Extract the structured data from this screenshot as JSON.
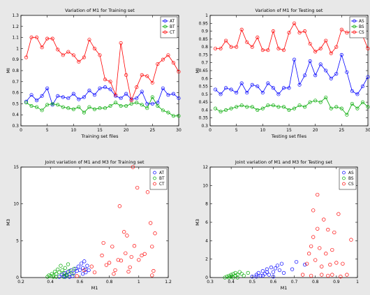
{
  "chart_data": [
    {
      "type": "line",
      "title": "Variation of M1 for Training set",
      "xlabel": "Training set files",
      "ylabel": "MI",
      "xlim": [
        0,
        30
      ],
      "ylim": [
        0.3,
        1.3
      ],
      "xticks": [
        0,
        5,
        10,
        15,
        20,
        25,
        30
      ],
      "yticks": [
        0.3,
        0.4,
        0.5,
        0.6,
        0.7,
        0.8,
        0.9,
        1.0,
        1.1,
        1.2,
        1.3
      ],
      "grid": false,
      "legend_position": "top-right",
      "x": [
        1,
        2,
        3,
        4,
        5,
        6,
        7,
        8,
        9,
        10,
        11,
        12,
        13,
        14,
        15,
        16,
        17,
        18,
        19,
        20,
        21,
        22,
        23,
        24,
        25,
        26,
        27,
        28,
        29,
        30
      ],
      "series": [
        {
          "name": "AT",
          "color": "#0000ff",
          "values": [
            0.52,
            0.58,
            0.53,
            0.57,
            0.64,
            0.49,
            0.57,
            0.56,
            0.55,
            0.59,
            0.54,
            0.56,
            0.62,
            0.58,
            0.64,
            0.65,
            0.63,
            0.57,
            0.55,
            0.59,
            0.54,
            0.55,
            0.61,
            0.5,
            0.5,
            0.51,
            0.64,
            0.58,
            0.59,
            0.55
          ]
        },
        {
          "name": "BT",
          "color": "#00aa00",
          "values": [
            0.51,
            0.48,
            0.47,
            0.44,
            0.49,
            0.5,
            0.49,
            0.47,
            0.46,
            0.45,
            0.47,
            0.42,
            0.47,
            0.45,
            0.46,
            0.46,
            0.48,
            0.51,
            0.48,
            0.48,
            0.5,
            0.51,
            0.49,
            0.46,
            0.56,
            0.48,
            0.44,
            0.42,
            0.39,
            0.39
          ]
        },
        {
          "name": "CT",
          "color": "#ff0000",
          "values": [
            0.92,
            1.1,
            1.1,
            1.01,
            1.09,
            1.09,
            0.99,
            0.94,
            0.97,
            0.94,
            0.88,
            0.92,
            1.08,
            1.0,
            0.94,
            0.72,
            0.7,
            0.58,
            1.05,
            0.76,
            0.53,
            0.65,
            0.76,
            0.75,
            0.69,
            0.86,
            0.9,
            0.94,
            0.87,
            0.79
          ]
        }
      ]
    },
    {
      "type": "line",
      "title": "Variation of M1 for Testing set",
      "xlabel": "Testing set files",
      "ylabel": "MI",
      "xlim": [
        0,
        30
      ],
      "ylim": [
        0.3,
        1.0
      ],
      "xticks": [
        0,
        5,
        10,
        15,
        20,
        25,
        30
      ],
      "yticks": [
        0.3,
        0.35,
        0.4,
        0.45,
        0.5,
        0.55,
        0.6,
        0.65,
        0.7,
        0.75,
        0.8,
        0.85,
        0.9,
        0.95,
        1.0
      ],
      "grid": false,
      "legend_position": "top-right",
      "x": [
        1,
        2,
        3,
        4,
        5,
        6,
        7,
        8,
        9,
        10,
        11,
        12,
        13,
        14,
        15,
        16,
        17,
        18,
        19,
        20,
        21,
        22,
        23,
        24,
        25,
        26,
        27,
        28,
        29,
        30
      ],
      "series": [
        {
          "name": "AS",
          "color": "#0000ff",
          "values": [
            0.53,
            0.5,
            0.54,
            0.53,
            0.51,
            0.57,
            0.51,
            0.56,
            0.55,
            0.51,
            0.57,
            0.54,
            0.5,
            0.54,
            0.54,
            0.72,
            0.56,
            0.62,
            0.71,
            0.62,
            0.69,
            0.65,
            0.6,
            0.63,
            0.75,
            0.64,
            0.52,
            0.5,
            0.55,
            0.61
          ]
        },
        {
          "name": "BS",
          "color": "#00aa00",
          "values": [
            0.41,
            0.39,
            0.4,
            0.41,
            0.42,
            0.43,
            0.42,
            0.42,
            0.4,
            0.41,
            0.43,
            0.43,
            0.42,
            0.42,
            0.4,
            0.41,
            0.43,
            0.42,
            0.45,
            0.46,
            0.45,
            0.48,
            0.41,
            0.42,
            0.41,
            0.37,
            0.44,
            0.41,
            0.45,
            0.42
          ]
        },
        {
          "name": "CS",
          "color": "#ff0000",
          "values": [
            0.79,
            0.79,
            0.84,
            0.8,
            0.8,
            0.91,
            0.83,
            0.8,
            0.86,
            0.78,
            0.78,
            0.9,
            0.79,
            0.78,
            0.89,
            0.95,
            0.89,
            0.9,
            0.82,
            0.77,
            0.79,
            0.84,
            0.76,
            0.8,
            0.91,
            0.89,
            0.9,
            0.89,
            0.87,
            0.79
          ]
        }
      ]
    },
    {
      "type": "scatter",
      "title": "Joint variation of M1 and M3 for Training set",
      "xlabel": "M1",
      "ylabel": "M3",
      "xlim": [
        0.2,
        1.2
      ],
      "ylim": [
        0,
        15
      ],
      "xticks": [
        0.2,
        0.4,
        0.6,
        0.8,
        1.0,
        1.2
      ],
      "xtick_labels": [
        "0.2",
        "0.4",
        "0.6",
        "0.8",
        "1",
        "1.2"
      ],
      "yticks": [
        0,
        5,
        10,
        15
      ],
      "grid": false,
      "legend_position": "top-right",
      "series": [
        {
          "name": "AT",
          "color": "#0000ff",
          "points": [
            [
              0.46,
              0.1
            ],
            [
              0.48,
              0.4
            ],
            [
              0.49,
              0.2
            ],
            [
              0.5,
              0.6
            ],
            [
              0.51,
              0.3
            ],
            [
              0.52,
              0.8
            ],
            [
              0.53,
              0.4
            ],
            [
              0.54,
              1.0
            ],
            [
              0.55,
              0.2
            ],
            [
              0.56,
              0.6
            ],
            [
              0.57,
              1.2
            ],
            [
              0.58,
              0.9
            ],
            [
              0.59,
              1.5
            ],
            [
              0.6,
              1.0
            ],
            [
              0.61,
              1.9
            ],
            [
              0.62,
              1.3
            ],
            [
              0.63,
              2.2
            ],
            [
              0.64,
              1.1
            ],
            [
              0.65,
              1.6
            ],
            [
              0.66,
              1.0
            ],
            [
              0.64,
              0.7
            ],
            [
              0.62,
              0.5
            ],
            [
              0.53,
              0.1
            ],
            [
              0.5,
              0.1
            ]
          ]
        },
        {
          "name": "BT",
          "color": "#00aa00",
          "points": [
            [
              0.38,
              0.1
            ],
            [
              0.39,
              0.3
            ],
            [
              0.4,
              0.2
            ],
            [
              0.41,
              0.5
            ],
            [
              0.42,
              0.3
            ],
            [
              0.43,
              0.8
            ],
            [
              0.44,
              0.5
            ],
            [
              0.45,
              1.1
            ],
            [
              0.46,
              0.7
            ],
            [
              0.47,
              1.6
            ],
            [
              0.48,
              1.0
            ],
            [
              0.49,
              0.6
            ],
            [
              0.5,
              1.3
            ],
            [
              0.51,
              0.4
            ],
            [
              0.52,
              1.8
            ],
            [
              0.53,
              0.9
            ],
            [
              0.55,
              0.5
            ],
            [
              0.56,
              1.2
            ],
            [
              0.51,
              0.2
            ],
            [
              0.49,
              0.1
            ],
            [
              0.44,
              0.1
            ],
            [
              0.42,
              0.1
            ]
          ]
        },
        {
          "name": "CT",
          "color": "#ff0000",
          "points": [
            [
              0.58,
              0.2
            ],
            [
              0.63,
              1.0
            ],
            [
              0.68,
              1.5
            ],
            [
              0.7,
              0.7
            ],
            [
              0.75,
              3.0
            ],
            [
              0.76,
              4.7
            ],
            [
              0.78,
              1.7
            ],
            [
              0.8,
              2.0
            ],
            [
              0.82,
              4.2
            ],
            [
              0.84,
              1.0
            ],
            [
              0.86,
              2.4
            ],
            [
              0.87,
              9.7
            ],
            [
              0.88,
              2.3
            ],
            [
              0.9,
              6.2
            ],
            [
              0.91,
              3.3
            ],
            [
              0.92,
              5.7
            ],
            [
              0.94,
              1.4
            ],
            [
              0.95,
              2.8
            ],
            [
              0.96,
              15.0
            ],
            [
              0.97,
              4.3
            ],
            [
              0.99,
              12.2
            ],
            [
              1.0,
              2.4
            ],
            [
              1.02,
              3.0
            ],
            [
              1.04,
              3.2
            ],
            [
              1.06,
              11.6
            ],
            [
              1.08,
              7.4
            ],
            [
              1.09,
              4.2
            ],
            [
              1.1,
              0.9
            ],
            [
              1.11,
              6.0
            ],
            [
              1.09,
              0.3
            ],
            [
              0.93,
              0.8
            ],
            [
              0.83,
              0.5
            ]
          ]
        }
      ]
    },
    {
      "type": "scatter",
      "title": "Joint variation of M1 and M3 for Testing set",
      "xlabel": "M1",
      "ylabel": "M3",
      "xlim": [
        0.3,
        1.0
      ],
      "ylim": [
        0,
        12
      ],
      "xticks": [
        0.3,
        0.4,
        0.5,
        0.6,
        0.7,
        0.8,
        0.9,
        1.0
      ],
      "xtick_labels": [
        "0.3",
        "0.4",
        "0.5",
        "0.6",
        "0.7",
        "0.8",
        "0.9",
        "1"
      ],
      "yticks": [
        0,
        2,
        4,
        6,
        8,
        10,
        12
      ],
      "grid": false,
      "legend_position": "top-right",
      "series": [
        {
          "name": "AS",
          "color": "#0000ff",
          "points": [
            [
              0.5,
              0.1
            ],
            [
              0.52,
              0.3
            ],
            [
              0.53,
              0.5
            ],
            [
              0.54,
              0.2
            ],
            [
              0.55,
              0.7
            ],
            [
              0.56,
              0.4
            ],
            [
              0.57,
              0.9
            ],
            [
              0.58,
              0.3
            ],
            [
              0.59,
              1.1
            ],
            [
              0.6,
              0.6
            ],
            [
              0.62,
              1.3
            ],
            [
              0.63,
              0.8
            ],
            [
              0.64,
              1.5
            ],
            [
              0.61,
              1.0
            ],
            [
              0.57,
              0.6
            ],
            [
              0.55,
              0.2
            ],
            [
              0.71,
              1.7
            ],
            [
              0.75,
              1.4
            ],
            [
              0.69,
              0.9
            ],
            [
              0.65,
              0.5
            ],
            [
              0.6,
              0.1
            ],
            [
              0.52,
              0.1
            ]
          ]
        },
        {
          "name": "BS",
          "color": "#00aa00",
          "points": [
            [
              0.37,
              0.0
            ],
            [
              0.38,
              0.1
            ],
            [
              0.39,
              0.2
            ],
            [
              0.4,
              0.1
            ],
            [
              0.4,
              0.3
            ],
            [
              0.41,
              0.4
            ],
            [
              0.42,
              0.2
            ],
            [
              0.42,
              0.5
            ],
            [
              0.43,
              0.3
            ],
            [
              0.44,
              0.6
            ],
            [
              0.45,
              0.4
            ],
            [
              0.46,
              0.2
            ],
            [
              0.48,
              0.5
            ],
            [
              0.39,
              0.0
            ],
            [
              0.41,
              0.0
            ],
            [
              0.43,
              0.0
            ]
          ]
        },
        {
          "name": "CS",
          "color": "#ff0000",
          "points": [
            [
              0.74,
              0.3
            ],
            [
              0.76,
              1.5
            ],
            [
              0.77,
              2.6
            ],
            [
              0.78,
              3.4
            ],
            [
              0.79,
              7.3
            ],
            [
              0.79,
              4.4
            ],
            [
              0.8,
              1.9
            ],
            [
              0.81,
              9.0
            ],
            [
              0.81,
              5.3
            ],
            [
              0.82,
              3.2
            ],
            [
              0.83,
              1.2
            ],
            [
              0.84,
              6.3
            ],
            [
              0.85,
              2.6
            ],
            [
              0.86,
              5.2
            ],
            [
              0.87,
              1.4
            ],
            [
              0.88,
              3.0
            ],
            [
              0.89,
              4.9
            ],
            [
              0.9,
              1.6
            ],
            [
              0.91,
              6.9
            ],
            [
              0.92,
              0.1
            ],
            [
              0.93,
              1.5
            ],
            [
              0.95,
              0.3
            ],
            [
              0.97,
              4.1
            ],
            [
              0.86,
              0.2
            ],
            [
              0.88,
              0.3
            ],
            [
              0.83,
              0.3
            ],
            [
              0.78,
              0.2
            ]
          ]
        }
      ]
    }
  ]
}
